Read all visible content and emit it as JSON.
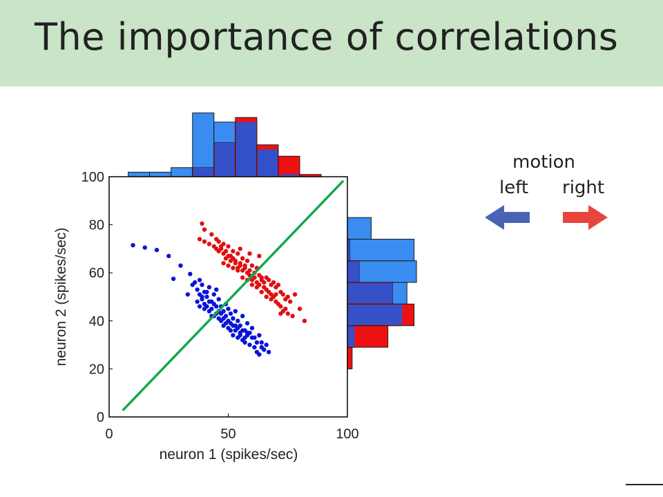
{
  "title": "The importance of correlations",
  "legend": {
    "heading": "motion",
    "left_label": "left",
    "right_label": "right",
    "left_color": "#4a63b5",
    "right_color": "#e8453c"
  },
  "chart_data": {
    "type": "scatter",
    "title": "",
    "xlabel": "neuron 1 (spikes/sec)",
    "ylabel": "neuron 2 (spikes/sec)",
    "xlim": [
      0,
      100
    ],
    "ylim": [
      0,
      100
    ],
    "xticks": [
      0,
      50,
      100
    ],
    "yticks": [
      0,
      20,
      40,
      60,
      80,
      100
    ],
    "colors": {
      "left_points": "#0a14d8",
      "right_points": "#e01010",
      "diagonal": "#12a84e",
      "hist_left": "#3a8cf0",
      "hist_right": "#ee1111",
      "hist_overlap": "#3551c9"
    },
    "series": [
      {
        "points": [
          [
            10,
            71.5
          ],
          [
            15,
            70.5
          ],
          [
            20,
            69.5
          ],
          [
            25,
            67
          ],
          [
            27,
            57.5
          ],
          [
            30,
            63
          ],
          [
            34,
            59.5
          ],
          [
            35,
            55
          ],
          [
            33,
            51
          ],
          [
            36,
            56
          ],
          [
            37,
            53
          ],
          [
            38,
            57
          ],
          [
            39,
            55
          ],
          [
            40,
            52
          ],
          [
            41,
            50
          ],
          [
            42,
            54
          ],
          [
            43,
            48
          ],
          [
            44,
            51
          ],
          [
            45,
            53
          ],
          [
            46,
            49
          ],
          [
            47,
            46
          ],
          [
            48,
            44
          ],
          [
            49,
            47
          ],
          [
            50,
            45
          ],
          [
            51,
            43
          ],
          [
            52,
            41
          ],
          [
            53,
            44
          ],
          [
            54,
            40
          ],
          [
            55,
            38
          ],
          [
            56,
            42
          ],
          [
            57,
            36
          ],
          [
            58,
            39
          ],
          [
            59,
            35
          ],
          [
            60,
            37
          ],
          [
            61,
            33
          ],
          [
            62,
            31
          ],
          [
            63,
            34
          ],
          [
            64,
            29
          ],
          [
            65,
            28
          ],
          [
            66,
            30
          ],
          [
            67,
            27
          ],
          [
            38,
            51
          ],
          [
            39,
            49
          ],
          [
            40,
            47
          ],
          [
            41,
            46
          ],
          [
            42,
            44
          ],
          [
            43,
            45
          ],
          [
            44,
            42
          ],
          [
            45,
            43
          ],
          [
            46,
            41
          ],
          [
            47,
            40
          ],
          [
            48,
            38
          ],
          [
            49,
            39
          ],
          [
            50,
            37
          ],
          [
            51,
            36
          ],
          [
            52,
            34
          ],
          [
            53,
            38
          ],
          [
            54,
            33
          ],
          [
            55,
            35
          ],
          [
            56,
            32
          ],
          [
            57,
            31
          ],
          [
            58,
            34
          ],
          [
            59,
            30
          ],
          [
            60,
            33
          ],
          [
            61,
            29
          ],
          [
            62,
            27
          ],
          [
            63,
            26
          ],
          [
            64,
            31
          ],
          [
            37,
            48
          ],
          [
            38,
            46
          ],
          [
            39,
            50
          ],
          [
            40,
            45
          ],
          [
            41,
            52
          ],
          [
            42,
            48
          ],
          [
            43,
            42
          ],
          [
            44,
            47
          ],
          [
            45,
            46
          ],
          [
            46,
            44
          ],
          [
            47,
            43
          ],
          [
            48,
            41
          ],
          [
            49,
            42
          ],
          [
            50,
            40
          ],
          [
            51,
            39
          ],
          [
            52,
            38
          ],
          [
            53,
            36
          ],
          [
            54,
            37
          ],
          [
            55,
            34
          ],
          [
            56,
            36
          ],
          [
            57,
            33
          ],
          [
            58,
            35
          ]
        ]
      },
      {
        "points": [
          [
            39,
            80.5
          ],
          [
            40,
            78
          ],
          [
            43,
            76
          ],
          [
            38,
            74
          ],
          [
            40,
            73
          ],
          [
            42,
            72
          ],
          [
            44,
            71
          ],
          [
            45,
            74
          ],
          [
            46,
            73
          ],
          [
            47,
            70
          ],
          [
            48,
            72
          ],
          [
            49,
            69
          ],
          [
            50,
            71
          ],
          [
            51,
            67
          ],
          [
            52,
            69
          ],
          [
            53,
            65
          ],
          [
            54,
            68
          ],
          [
            55,
            64
          ],
          [
            56,
            66
          ],
          [
            57,
            63
          ],
          [
            58,
            65
          ],
          [
            59,
            61
          ],
          [
            60,
            63
          ],
          [
            61,
            60
          ],
          [
            62,
            62
          ],
          [
            63,
            59
          ],
          [
            64,
            58
          ],
          [
            65,
            56
          ],
          [
            66,
            58
          ],
          [
            67,
            57
          ],
          [
            68,
            55
          ],
          [
            69,
            56
          ],
          [
            70,
            54
          ],
          [
            71,
            55
          ],
          [
            72,
            52
          ],
          [
            73,
            51
          ],
          [
            74,
            49
          ],
          [
            75,
            50
          ],
          [
            76,
            48
          ],
          [
            78,
            51
          ],
          [
            80,
            45
          ],
          [
            82,
            40
          ],
          [
            48,
            68
          ],
          [
            49,
            66
          ],
          [
            50,
            67
          ],
          [
            51,
            65
          ],
          [
            52,
            66
          ],
          [
            53,
            64
          ],
          [
            54,
            62
          ],
          [
            55,
            63
          ],
          [
            56,
            61
          ],
          [
            57,
            62
          ],
          [
            58,
            60
          ],
          [
            59,
            59
          ],
          [
            60,
            57
          ],
          [
            61,
            58
          ],
          [
            62,
            56
          ],
          [
            63,
            55
          ],
          [
            64,
            57
          ],
          [
            65,
            54
          ],
          [
            66,
            53
          ],
          [
            67,
            52
          ],
          [
            68,
            51
          ],
          [
            69,
            50
          ],
          [
            70,
            48
          ],
          [
            71,
            47
          ],
          [
            72,
            46
          ],
          [
            73,
            44
          ],
          [
            74,
            45
          ],
          [
            75,
            43
          ],
          [
            77,
            42
          ],
          [
            45,
            70
          ],
          [
            46,
            69
          ],
          [
            47,
            71
          ],
          [
            48,
            64
          ],
          [
            50,
            63
          ],
          [
            52,
            62
          ],
          [
            54,
            61
          ],
          [
            56,
            58
          ],
          [
            58,
            57
          ],
          [
            60,
            55
          ],
          [
            62,
            54
          ],
          [
            64,
            52
          ],
          [
            66,
            50
          ],
          [
            68,
            49
          ],
          [
            70,
            51
          ],
          [
            72,
            43
          ],
          [
            63,
            67
          ],
          [
            59,
            68
          ],
          [
            55,
            70
          ]
        ]
      }
    ],
    "diagonal": [
      [
        6,
        3
      ],
      [
        98,
        98
      ]
    ],
    "top_histogram": {
      "bin_edges": [
        8,
        17,
        26,
        35,
        44,
        53,
        62,
        71,
        80,
        89,
        98
      ],
      "left_counts": [
        2,
        2,
        4,
        28,
        24,
        24,
        12,
        1,
        0,
        0
      ],
      "right_counts": [
        0,
        0,
        0,
        4,
        15,
        26,
        14,
        9,
        1,
        0
      ]
    },
    "right_histogram": {
      "bin_edges": [
        20,
        29,
        38,
        47,
        56,
        65,
        74,
        83
      ],
      "left_counts": [
        0,
        3,
        23,
        25,
        29,
        28,
        10
      ],
      "right_counts": [
        2,
        17,
        28,
        19,
        5,
        1,
        0
      ]
    }
  }
}
